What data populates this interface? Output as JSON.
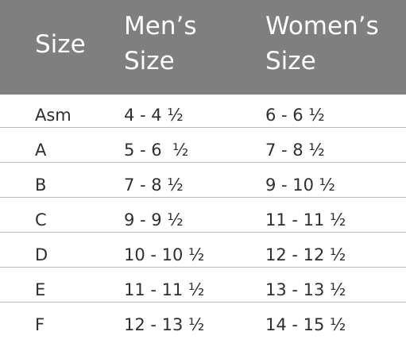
{
  "header": {
    "size": "Size",
    "mens_line1": "Men’s",
    "mens_line2": "Size",
    "womens_line1": "Women’s",
    "womens_line2": "Size"
  },
  "rows": [
    {
      "size": "Asm",
      "mens": "4 - 4 ½",
      "womens": "6 - 6 ½"
    },
    {
      "size": "A",
      "mens": "5 - 6  ½",
      "womens": "7 - 8 ½"
    },
    {
      "size": "B",
      "mens": "7 - 8 ½",
      "womens": "9 - 10 ½"
    },
    {
      "size": "C",
      "mens": "9 - 9 ½",
      "womens": "11 - 11 ½"
    },
    {
      "size": "D",
      "mens": "10 - 10 ½",
      "womens": "12 - 12 ½"
    },
    {
      "size": "E",
      "mens": "11 - 11 ½",
      "womens": "13 - 13 ½"
    },
    {
      "size": "F",
      "mens": "12 - 13 ½",
      "womens": "14 - 15 ½"
    }
  ],
  "colors": {
    "header_background": "#7f7f7f",
    "header_text": "#ffffff",
    "body_text": "#2f2f2f",
    "divider": "#b9b9b9"
  }
}
